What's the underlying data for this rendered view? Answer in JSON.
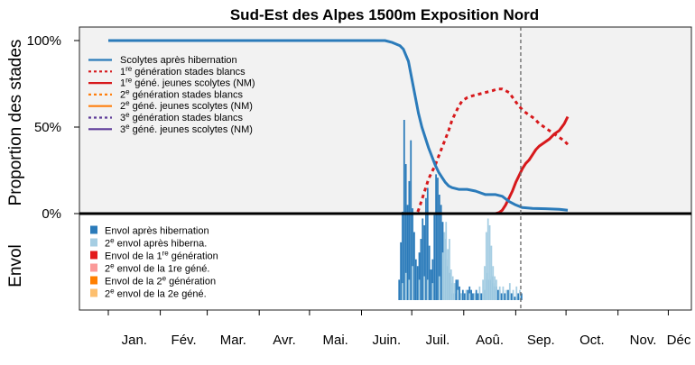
{
  "chart_data": {
    "title": "Sud-Est des Alpes 1500m Exposition Nord",
    "ylabel_top": "Proportion des stades",
    "ylabel_bottom": "Envol",
    "y_ticks": [
      {
        "value": 1.0,
        "label": "100%"
      },
      {
        "value": 0.5,
        "label": "50%"
      },
      {
        "value": 0.0,
        "label": "0%"
      }
    ],
    "x_months": [
      "Jan.",
      "Fév.",
      "Mar.",
      "Avr.",
      "Mai.",
      "Juin.",
      "Juil.",
      "Aoû.",
      "Sep.",
      "Oct.",
      "Nov.",
      "Déc"
    ],
    "x_range_doy": [
      1,
      366
    ],
    "current_day_doy": 247,
    "lines": [
      {
        "name": "Scolytes après hibernation",
        "color": "#2b7bba",
        "style": "solid",
        "points": [
          [
            1,
            1.0
          ],
          [
            20,
            1.0
          ],
          [
            60,
            1.0
          ],
          [
            100,
            1.0
          ],
          [
            140,
            1.0
          ],
          [
            166,
            1.0
          ],
          [
            170,
            0.99
          ],
          [
            175,
            0.97
          ],
          [
            177,
            0.95
          ],
          [
            180,
            0.88
          ],
          [
            182,
            0.78
          ],
          [
            184,
            0.68
          ],
          [
            186,
            0.58
          ],
          [
            188,
            0.5
          ],
          [
            190,
            0.44
          ],
          [
            192,
            0.38
          ],
          [
            194,
            0.33
          ],
          [
            196,
            0.28
          ],
          [
            198,
            0.24
          ],
          [
            200,
            0.21
          ],
          [
            202,
            0.18
          ],
          [
            204,
            0.16
          ],
          [
            206,
            0.15
          ],
          [
            210,
            0.14
          ],
          [
            215,
            0.14
          ],
          [
            220,
            0.13
          ],
          [
            223,
            0.12
          ],
          [
            226,
            0.11
          ],
          [
            232,
            0.11
          ],
          [
            236,
            0.1
          ],
          [
            240,
            0.07
          ],
          [
            244,
            0.05
          ],
          [
            248,
            0.035
          ],
          [
            254,
            0.03
          ],
          [
            262,
            0.028
          ],
          [
            270,
            0.025
          ],
          [
            275,
            0.02
          ]
        ]
      },
      {
        "name": "1re génération stades blancs",
        "color": "#d7191c",
        "style": "dotted",
        "points": [
          [
            1,
            0
          ],
          [
            185,
            0
          ],
          [
            186,
            0.02
          ],
          [
            188,
            0.08
          ],
          [
            190,
            0.14
          ],
          [
            192,
            0.2
          ],
          [
            194,
            0.24
          ],
          [
            196,
            0.28
          ],
          [
            198,
            0.33
          ],
          [
            200,
            0.38
          ],
          [
            202,
            0.43
          ],
          [
            204,
            0.48
          ],
          [
            206,
            0.54
          ],
          [
            208,
            0.58
          ],
          [
            210,
            0.62
          ],
          [
            212,
            0.65
          ],
          [
            215,
            0.67
          ],
          [
            218,
            0.68
          ],
          [
            222,
            0.69
          ],
          [
            226,
            0.7
          ],
          [
            230,
            0.71
          ],
          [
            233,
            0.72
          ],
          [
            236,
            0.72
          ],
          [
            240,
            0.7
          ],
          [
            243,
            0.66
          ],
          [
            246,
            0.62
          ],
          [
            249,
            0.59
          ],
          [
            252,
            0.57
          ],
          [
            255,
            0.55
          ],
          [
            258,
            0.52
          ],
          [
            261,
            0.5
          ],
          [
            264,
            0.48
          ],
          [
            267,
            0.46
          ],
          [
            270,
            0.44
          ],
          [
            273,
            0.42
          ],
          [
            275,
            0.4
          ]
        ]
      },
      {
        "name": "1re géné. jeunes scolytes (NM)",
        "color": "#d7191c",
        "style": "solid",
        "points": [
          [
            1,
            0
          ],
          [
            232,
            0
          ],
          [
            234,
            0.005
          ],
          [
            236,
            0.02
          ],
          [
            238,
            0.05
          ],
          [
            240,
            0.09
          ],
          [
            242,
            0.13
          ],
          [
            244,
            0.18
          ],
          [
            246,
            0.22
          ],
          [
            248,
            0.26
          ],
          [
            250,
            0.29
          ],
          [
            252,
            0.31
          ],
          [
            254,
            0.34
          ],
          [
            256,
            0.37
          ],
          [
            258,
            0.39
          ],
          [
            261,
            0.41
          ],
          [
            264,
            0.43
          ],
          [
            267,
            0.46
          ],
          [
            270,
            0.48
          ],
          [
            273,
            0.52
          ],
          [
            275,
            0.56
          ]
        ]
      },
      {
        "name": "2e génération stades blancs",
        "color": "#ff7f0e",
        "style": "dotted",
        "points": [
          [
            1,
            0
          ],
          [
            275,
            0
          ]
        ]
      },
      {
        "name": "2e géné. jeunes scolytes (NM)",
        "color": "#ff7f0e",
        "style": "solid",
        "points": [
          [
            1,
            0
          ],
          [
            275,
            0
          ]
        ]
      },
      {
        "name": "3e génération stades blancs",
        "color": "#5e3c99",
        "style": "dotted",
        "points": [
          [
            1,
            0
          ],
          [
            275,
            0
          ]
        ]
      },
      {
        "name": "3e géné. jeunes scolytes (NM)",
        "color": "#5e3c99",
        "style": "solid",
        "points": [
          [
            1,
            0
          ],
          [
            275,
            0
          ]
        ]
      }
    ],
    "bars_legend": [
      {
        "name": "Envol après hibernation",
        "color": "#2b7bba"
      },
      {
        "name": "2e envol après hiberna.",
        "color": "#a6cee3"
      },
      {
        "name": "Envol de la 1re génération",
        "color": "#e31a1c"
      },
      {
        "name": "2e envol de la 1re géné.",
        "color": "#fb9a99"
      },
      {
        "name": "Envol de la 2e génération",
        "color": "#ff7f00"
      },
      {
        "name": "2e envol de la 2e géné.",
        "color": "#fdbf6f"
      }
    ],
    "bars_top_scale": 0.53,
    "bars": {
      "envol_apres_hibernation": [
        [
          174,
          0.06
        ],
        [
          175,
          0.17
        ],
        [
          176,
          0.26
        ],
        [
          177,
          0.53
        ],
        [
          178,
          0.4
        ],
        [
          179,
          0.28
        ],
        [
          180,
          0.35
        ],
        [
          181,
          0.47
        ],
        [
          182,
          0.27
        ],
        [
          183,
          0.2
        ],
        [
          184,
          0.12
        ],
        [
          185,
          0.1
        ],
        [
          186,
          0.14
        ],
        [
          187,
          0.18
        ],
        [
          188,
          0.24
        ],
        [
          189,
          0.22
        ],
        [
          190,
          0.3
        ],
        [
          191,
          0.33
        ],
        [
          192,
          0.16
        ],
        [
          193,
          0.09
        ],
        [
          194,
          0.12
        ],
        [
          195,
          0.25
        ],
        [
          196,
          0.37
        ],
        [
          197,
          0.36
        ],
        [
          198,
          0.31
        ],
        [
          199,
          0.28
        ],
        [
          200,
          0.23
        ],
        [
          201,
          0.18
        ],
        [
          202,
          0.12
        ],
        [
          203,
          0.1
        ],
        [
          204,
          0.08
        ],
        [
          205,
          0.05
        ],
        [
          206,
          0.02
        ],
        [
          207,
          0.02
        ],
        [
          208,
          0.06
        ],
        [
          209,
          0.06
        ],
        [
          210,
          0.04
        ],
        [
          211,
          0.02
        ],
        [
          212,
          0.03
        ],
        [
          213,
          0.02
        ],
        [
          214,
          0.02
        ],
        [
          215,
          0.03
        ],
        [
          216,
          0.04
        ],
        [
          217,
          0.03
        ],
        [
          218,
          0.02
        ],
        [
          219,
          0.02
        ],
        [
          220,
          0.03
        ],
        [
          221,
          0.02
        ],
        [
          222,
          0.02
        ],
        [
          223,
          0.02
        ],
        [
          224,
          0.02
        ],
        [
          225,
          0.03
        ],
        [
          226,
          0.06
        ],
        [
          227,
          0.08
        ],
        [
          228,
          0.06
        ],
        [
          229,
          0.07
        ],
        [
          230,
          0.05
        ],
        [
          231,
          0.04
        ],
        [
          232,
          0.04
        ],
        [
          233,
          0.03
        ],
        [
          234,
          0.03
        ],
        [
          235,
          0.02
        ],
        [
          236,
          0.03
        ],
        [
          237,
          0.02
        ],
        [
          238,
          0.02
        ],
        [
          239,
          0.03
        ],
        [
          240,
          0.02
        ],
        [
          241,
          0.02
        ],
        [
          242,
          0.02
        ],
        [
          243,
          0.01
        ],
        [
          244,
          0.01
        ],
        [
          245,
          0.02
        ],
        [
          246,
          0.01
        ],
        [
          247,
          0.02
        ]
      ],
      "deuxieme_envol_apres_hibernation": [
        [
          176,
          0.05
        ],
        [
          178,
          0.08
        ],
        [
          180,
          0.06
        ],
        [
          182,
          0.1
        ],
        [
          186,
          0.06
        ],
        [
          189,
          0.07
        ],
        [
          191,
          0.06
        ],
        [
          194,
          0.05
        ],
        [
          198,
          0.07
        ],
        [
          200,
          0.14
        ],
        [
          201,
          0.2
        ],
        [
          202,
          0.23
        ],
        [
          203,
          0.15
        ],
        [
          204,
          0.18
        ],
        [
          205,
          0.09
        ],
        [
          206,
          0.07
        ],
        [
          207,
          0.05
        ],
        [
          209,
          0.03
        ],
        [
          211,
          0.02
        ],
        [
          214,
          0.03
        ],
        [
          216,
          0.02
        ],
        [
          219,
          0.02
        ],
        [
          222,
          0.04
        ],
        [
          224,
          0.06
        ],
        [
          225,
          0.1
        ],
        [
          226,
          0.2
        ],
        [
          227,
          0.24
        ],
        [
          228,
          0.22
        ],
        [
          229,
          0.16
        ],
        [
          230,
          0.1
        ],
        [
          231,
          0.07
        ],
        [
          232,
          0.06
        ],
        [
          234,
          0.04
        ],
        [
          236,
          0.04
        ],
        [
          238,
          0.03
        ],
        [
          240,
          0.05
        ],
        [
          242,
          0.03
        ],
        [
          244,
          0.04
        ],
        [
          246,
          0.03
        ]
      ],
      "envol_1re_generation": [],
      "deuxieme_envol_1re_generation": [],
      "envol_2e_generation": [],
      "deuxieme_envol_2e_generation": []
    }
  }
}
